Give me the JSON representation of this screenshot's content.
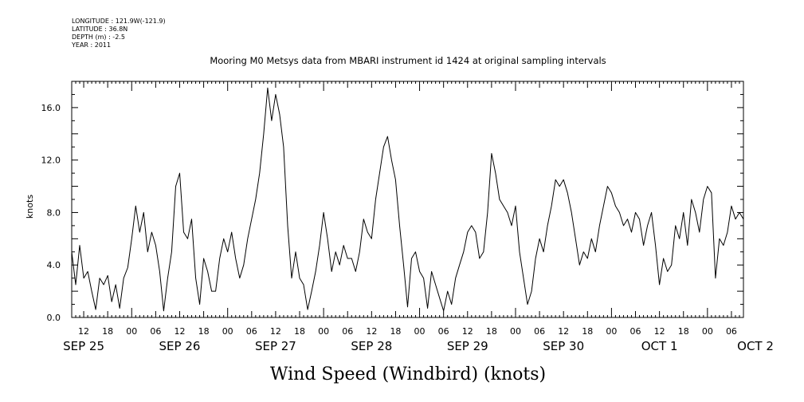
{
  "header": {
    "longitude": "LONGITUDE : 121.9W(-121.9)",
    "latitude": "LATITUDE : 36.8N",
    "depth": "DEPTH (m) : -2.5",
    "year": "YEAR : 2011",
    "title": "Mooring M0 Metsys data from MBARI instrument id 1424 at original sampling intervals"
  },
  "chart_data": {
    "type": "line",
    "title": "Mooring M0 Metsys data from MBARI instrument id 1424 at original sampling intervals",
    "xlabel": "Wind Speed (Windbird) (knots)",
    "ylabel": "knots",
    "ylim": [
      0,
      18
    ],
    "xlim_hours": [
      0,
      168
    ],
    "y_ticks": [
      0,
      4,
      8,
      12,
      16
    ],
    "y_tick_labels": [
      "0.0",
      "4.0",
      "8.0",
      "12.0",
      "16.0"
    ],
    "x_tick_labels": [
      "12",
      "18",
      "00",
      "06",
      "12",
      "18",
      "00",
      "06",
      "12",
      "18",
      "00",
      "06",
      "12",
      "18",
      "00",
      "06",
      "12",
      "18",
      "00",
      "06",
      "12",
      "18",
      "00",
      "06",
      "12",
      "18",
      "00",
      "06"
    ],
    "day_labels": [
      "SEP 25",
      "SEP 26",
      "SEP 27",
      "SEP 28",
      "SEP 29",
      "SEP 30",
      "OCT  1",
      "OCT  2"
    ],
    "grid": false,
    "series": [
      {
        "values": [
          [
            0.0,
            5.0
          ],
          [
            1.0,
            2.5
          ],
          [
            2.0,
            5.5
          ],
          [
            3.0,
            3.0
          ],
          [
            4.0,
            3.5
          ],
          [
            5.0,
            2.0
          ],
          [
            6.0,
            0.6
          ],
          [
            7.0,
            3.0
          ],
          [
            8.0,
            2.5
          ],
          [
            9.0,
            3.2
          ],
          [
            10.0,
            1.2
          ],
          [
            11.0,
            2.5
          ],
          [
            12.0,
            0.7
          ],
          [
            13.0,
            3.0
          ],
          [
            14.0,
            3.8
          ],
          [
            15.0,
            6.0
          ],
          [
            16.0,
            8.5
          ],
          [
            17.0,
            6.5
          ],
          [
            18.0,
            8.0
          ],
          [
            19.0,
            5.0
          ],
          [
            20.0,
            6.5
          ],
          [
            21.0,
            5.5
          ],
          [
            22.0,
            3.5
          ],
          [
            23.0,
            0.5
          ],
          [
            24.0,
            3.0
          ],
          [
            25.0,
            5.0
          ],
          [
            26.0,
            10.0
          ],
          [
            27.0,
            11.0
          ],
          [
            28.0,
            6.5
          ],
          [
            29.0,
            6.0
          ],
          [
            30.0,
            7.5
          ],
          [
            31.0,
            3.0
          ],
          [
            32.0,
            1.0
          ],
          [
            33.0,
            4.5
          ],
          [
            34.0,
            3.5
          ],
          [
            35.0,
            2.0
          ],
          [
            36.0,
            2.0
          ],
          [
            37.0,
            4.5
          ],
          [
            38.0,
            6.0
          ],
          [
            39.0,
            5.0
          ],
          [
            40.0,
            6.5
          ],
          [
            41.0,
            4.5
          ],
          [
            42.0,
            3.0
          ],
          [
            43.0,
            4.0
          ],
          [
            44.0,
            6.0
          ],
          [
            45.0,
            7.5
          ],
          [
            46.0,
            9.0
          ],
          [
            47.0,
            11.0
          ],
          [
            48.0,
            14.0
          ],
          [
            49.0,
            17.5
          ],
          [
            50.0,
            15.0
          ],
          [
            51.0,
            17.0
          ],
          [
            52.0,
            15.5
          ],
          [
            53.0,
            13.0
          ],
          [
            54.0,
            7.0
          ],
          [
            55.0,
            3.0
          ],
          [
            56.0,
            5.0
          ],
          [
            57.0,
            3.0
          ],
          [
            58.0,
            2.5
          ],
          [
            59.0,
            0.6
          ],
          [
            60.0,
            2.0
          ],
          [
            61.0,
            3.5
          ],
          [
            62.0,
            5.5
          ],
          [
            63.0,
            8.0
          ],
          [
            64.0,
            6.0
          ],
          [
            65.0,
            3.5
          ],
          [
            66.0,
            5.0
          ],
          [
            67.0,
            4.0
          ],
          [
            68.0,
            5.5
          ],
          [
            69.0,
            4.5
          ],
          [
            70.0,
            4.5
          ],
          [
            71.0,
            3.5
          ],
          [
            72.0,
            5.0
          ],
          [
            73.0,
            7.5
          ],
          [
            74.0,
            6.5
          ],
          [
            75.0,
            6.0
          ],
          [
            76.0,
            9.0
          ],
          [
            77.0,
            11.0
          ],
          [
            78.0,
            13.0
          ],
          [
            79.0,
            13.8
          ],
          [
            80.0,
            12.0
          ],
          [
            81.0,
            10.5
          ],
          [
            82.0,
            7.0
          ],
          [
            83.0,
            4.0
          ],
          [
            84.0,
            0.8
          ],
          [
            85.0,
            4.5
          ],
          [
            86.0,
            5.0
          ],
          [
            87.0,
            3.5
          ],
          [
            88.0,
            3.0
          ],
          [
            89.0,
            0.7
          ],
          [
            90.0,
            3.5
          ],
          [
            91.0,
            2.5
          ],
          [
            92.0,
            1.5
          ],
          [
            93.0,
            0.5
          ],
          [
            94.0,
            2.0
          ],
          [
            95.0,
            1.0
          ],
          [
            96.0,
            3.0
          ],
          [
            97.0,
            4.0
          ],
          [
            98.0,
            5.0
          ],
          [
            99.0,
            6.5
          ],
          [
            100.0,
            7.0
          ],
          [
            101.0,
            6.5
          ],
          [
            102.0,
            4.5
          ],
          [
            103.0,
            5.0
          ],
          [
            104.0,
            8.0
          ],
          [
            105.0,
            12.5
          ],
          [
            106.0,
            11.0
          ],
          [
            107.0,
            9.0
          ],
          [
            108.0,
            8.5
          ],
          [
            109.0,
            8.0
          ],
          [
            110.0,
            7.0
          ],
          [
            111.0,
            8.5
          ],
          [
            112.0,
            5.0
          ],
          [
            113.0,
            3.0
          ],
          [
            114.0,
            1.0
          ],
          [
            115.0,
            2.0
          ],
          [
            116.0,
            4.5
          ],
          [
            117.0,
            6.0
          ],
          [
            118.0,
            5.0
          ],
          [
            119.0,
            7.0
          ],
          [
            120.0,
            8.5
          ],
          [
            121.0,
            10.5
          ],
          [
            122.0,
            10.0
          ],
          [
            123.0,
            10.5
          ],
          [
            124.0,
            9.5
          ],
          [
            125.0,
            8.0
          ],
          [
            126.0,
            6.0
          ],
          [
            127.0,
            4.0
          ],
          [
            128.0,
            5.0
          ],
          [
            129.0,
            4.5
          ],
          [
            130.0,
            6.0
          ],
          [
            131.0,
            5.0
          ],
          [
            132.0,
            7.0
          ],
          [
            133.0,
            8.5
          ],
          [
            134.0,
            10.0
          ],
          [
            135.0,
            9.5
          ],
          [
            136.0,
            8.5
          ],
          [
            137.0,
            8.0
          ],
          [
            138.0,
            7.0
          ],
          [
            139.0,
            7.5
          ],
          [
            140.0,
            6.5
          ],
          [
            141.0,
            8.0
          ],
          [
            142.0,
            7.5
          ],
          [
            143.0,
            5.5
          ],
          [
            144.0,
            7.0
          ],
          [
            145.0,
            8.0
          ],
          [
            146.0,
            5.5
          ],
          [
            147.0,
            2.5
          ],
          [
            148.0,
            4.5
          ],
          [
            149.0,
            3.5
          ],
          [
            150.0,
            4.0
          ],
          [
            151.0,
            7.0
          ],
          [
            152.0,
            6.0
          ],
          [
            153.0,
            8.0
          ],
          [
            154.0,
            5.5
          ],
          [
            155.0,
            9.0
          ],
          [
            156.0,
            8.0
          ],
          [
            157.0,
            6.5
          ],
          [
            158.0,
            9.0
          ],
          [
            159.0,
            10.0
          ],
          [
            160.0,
            9.5
          ],
          [
            161.0,
            3.0
          ],
          [
            162.0,
            6.0
          ],
          [
            163.0,
            5.5
          ],
          [
            164.0,
            6.5
          ],
          [
            165.0,
            8.5
          ],
          [
            166.0,
            7.5
          ],
          [
            167.0,
            8.0
          ],
          [
            168.0,
            7.5
          ]
        ]
      }
    ]
  }
}
